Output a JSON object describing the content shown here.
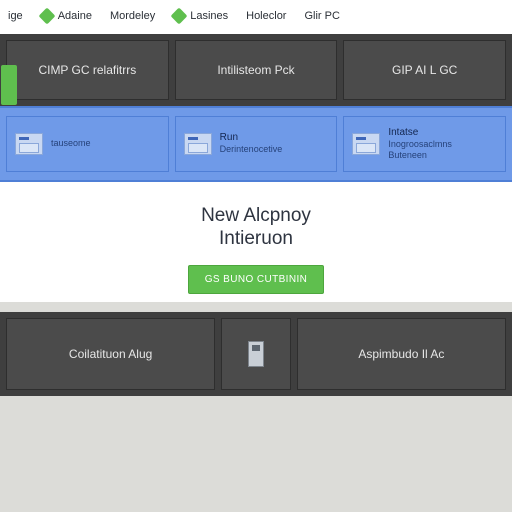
{
  "colors": {
    "green": "#5fbf4e",
    "blue": "#6f9ae8",
    "dark": "#4b4b4b",
    "bg": "#dcdcd8"
  },
  "legend": [
    {
      "label": "ige",
      "swatch": null
    },
    {
      "label": "Adaine",
      "swatch": "#5fbf4e"
    },
    {
      "label": "Mordeley",
      "swatch": null
    },
    {
      "label": "Lasines",
      "swatch": "#5fbf4e"
    },
    {
      "label": "Holeclor",
      "swatch": null
    },
    {
      "label": "Glir PC",
      "swatch": null
    }
  ],
  "topRow": [
    {
      "label": "CIMP GC relafitrrs",
      "hasGreenTab": true
    },
    {
      "label": "Intilisteom Pck",
      "hasGreenTab": false
    },
    {
      "label": "GIP AI L GC",
      "hasGreenTab": false
    }
  ],
  "blueRow": [
    {
      "line1": "",
      "line2": "tauseome"
    },
    {
      "line1": "Run",
      "line2": "Derintenocetive"
    },
    {
      "line1": "Intatse",
      "line2": "Inogroosaclmns",
      "line3": "Buteneen"
    }
  ],
  "mid": {
    "titleLine1": "New Alcpnoy",
    "titleLine2": "Intieruon",
    "cta": "GS BUNO CUTBININ"
  },
  "bottomRow": [
    {
      "label": "Coilatituon Alug",
      "icon": false
    },
    {
      "label": "",
      "icon": true
    },
    {
      "label": "Aspimbudo Il Ac",
      "icon": false
    }
  ]
}
